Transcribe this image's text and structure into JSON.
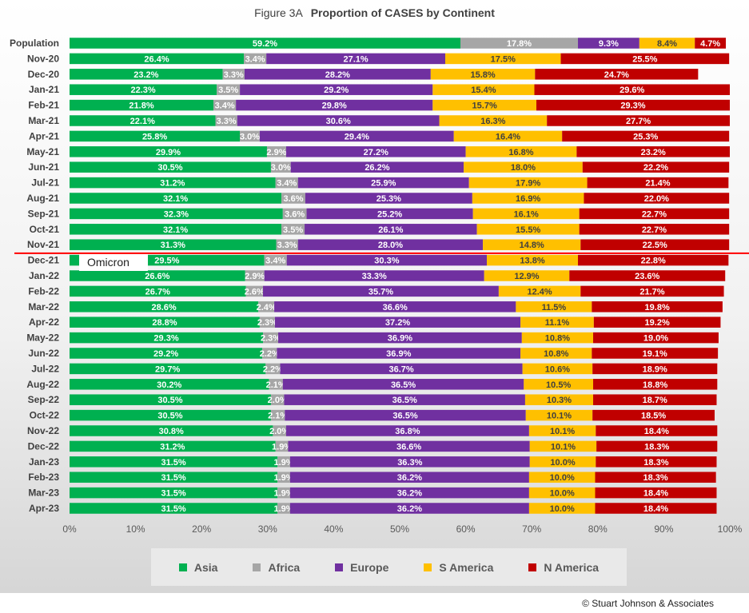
{
  "chart_data": {
    "type": "bar",
    "orientation": "horizontal",
    "stacked": "percent",
    "title_prefix": "Figure  3A",
    "title": "Proportion of CASES by Continent",
    "categories": [
      "Population",
      "Nov-20",
      "Dec-20",
      "Jan-21",
      "Feb-21",
      "Mar-21",
      "Apr-21",
      "May-21",
      "Jun-21",
      "Jul-21",
      "Aug-21",
      "Sep-21",
      "Oct-21",
      "Nov-21",
      "Dec-21",
      "Jan-22",
      "Feb-22",
      "Mar-22",
      "Apr-22",
      "May-22",
      "Jun-22",
      "Jul-22",
      "Aug-22",
      "Sep-22",
      "Oct-22",
      "Nov-22",
      "Dec-22",
      "Jan-23",
      "Feb-23",
      "Mar-23",
      "Apr-23"
    ],
    "series": [
      {
        "name": "Asia",
        "color": "#00b050",
        "values": [
          59.2,
          26.4,
          23.2,
          22.3,
          21.8,
          22.1,
          25.8,
          29.9,
          30.5,
          31.2,
          32.1,
          32.3,
          32.1,
          31.3,
          29.5,
          26.6,
          26.7,
          28.6,
          28.8,
          29.3,
          29.2,
          29.7,
          30.2,
          30.5,
          30.5,
          30.8,
          31.2,
          31.5,
          31.5,
          31.5,
          31.5
        ]
      },
      {
        "name": "Africa",
        "color": "#a6a6a6",
        "values": [
          17.8,
          3.4,
          3.3,
          3.5,
          3.4,
          3.3,
          3.0,
          2.9,
          3.0,
          3.4,
          3.6,
          3.6,
          3.5,
          3.3,
          3.4,
          2.9,
          2.6,
          2.4,
          2.3,
          2.3,
          2.2,
          2.2,
          2.1,
          2.0,
          2.1,
          2.0,
          1.9,
          1.9,
          1.9,
          1.9,
          1.9
        ]
      },
      {
        "name": "Europe",
        "color": "#7030a0",
        "values": [
          9.3,
          27.1,
          28.2,
          29.2,
          29.8,
          30.6,
          29.4,
          27.2,
          26.2,
          25.9,
          25.3,
          25.2,
          26.1,
          28.0,
          30.3,
          33.3,
          35.7,
          36.6,
          37.2,
          36.9,
          36.9,
          36.7,
          36.5,
          36.5,
          36.5,
          36.8,
          36.6,
          36.3,
          36.2,
          36.2,
          36.2
        ]
      },
      {
        "name": "S America",
        "color": "#ffc000",
        "values": [
          8.4,
          17.5,
          15.8,
          15.4,
          15.7,
          16.3,
          16.4,
          16.8,
          18.0,
          17.9,
          16.9,
          16.1,
          15.5,
          14.8,
          13.8,
          12.9,
          12.4,
          11.5,
          11.1,
          10.8,
          10.8,
          10.6,
          10.5,
          10.3,
          10.1,
          10.1,
          10.1,
          10.0,
          10.0,
          10.0,
          10.0
        ]
      },
      {
        "name": "N America",
        "color": "#c00000",
        "values": [
          4.7,
          25.5,
          24.7,
          29.6,
          29.3,
          27.7,
          25.3,
          23.2,
          22.2,
          21.4,
          22.0,
          22.7,
          22.7,
          22.5,
          22.8,
          23.6,
          21.7,
          19.8,
          19.2,
          19.0,
          19.1,
          18.9,
          18.8,
          18.7,
          18.5,
          18.4,
          18.3,
          18.3,
          18.3,
          18.4,
          18.4
        ]
      }
    ],
    "xlim": [
      0,
      100
    ],
    "xticks": [
      "0%",
      "10%",
      "20%",
      "30%",
      "40%",
      "50%",
      "60%",
      "70%",
      "80%",
      "90%",
      "100%"
    ],
    "legend_position": "bottom",
    "annotation": {
      "text": "Omicron",
      "after_category": "Nov-21",
      "line_color": "#ff0000"
    }
  },
  "footer": {
    "copyright": "© Stuart Johnson & Associates"
  }
}
